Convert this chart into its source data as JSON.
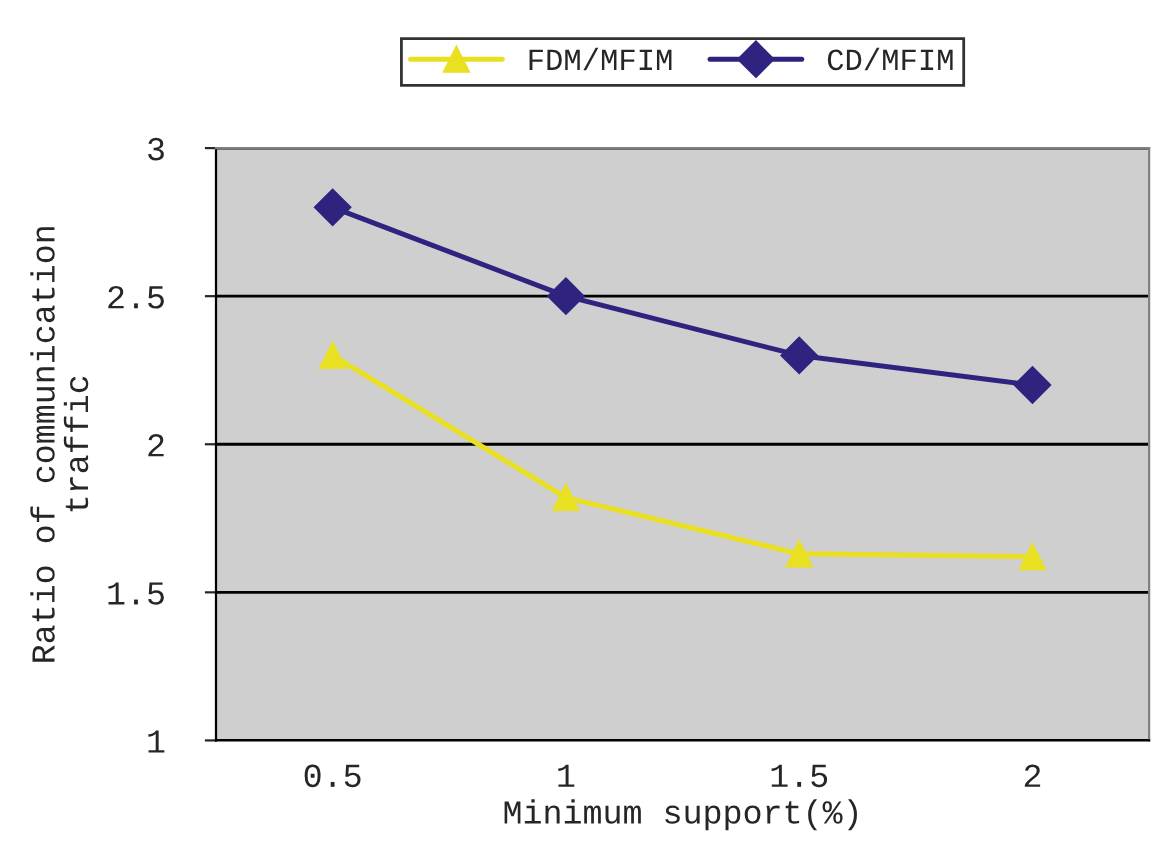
{
  "chart_data": {
    "type": "line",
    "categories": [
      "0.5",
      "1",
      "1.5",
      "2"
    ],
    "xlabel": "Minimum support(%)",
    "ylabel": "Ratio of communication\ntraffic",
    "series": [
      {
        "name": "FDM/MFIM",
        "color": "#e8e020",
        "marker": "triangle",
        "values": [
          2.3,
          1.82,
          1.63,
          1.62
        ]
      },
      {
        "name": "CD/MFIM",
        "color": "#2e2480",
        "marker": "diamond",
        "values": [
          2.8,
          2.5,
          2.3,
          2.2
        ]
      }
    ],
    "ylim": [
      1,
      3
    ],
    "yticks": [
      1,
      1.5,
      2,
      2.5,
      3
    ],
    "grid": "y",
    "legend": "top",
    "line_style": "solid"
  }
}
